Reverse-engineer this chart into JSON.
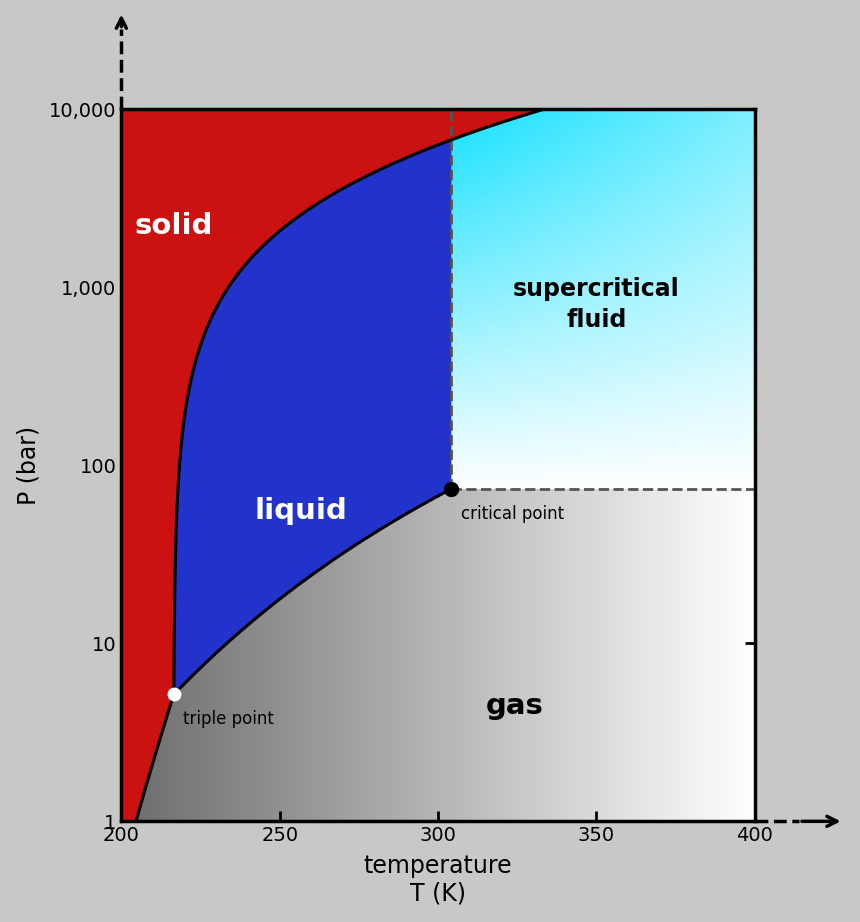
{
  "xlabel": "temperature\nT (K)",
  "ylabel": "P (bar)",
  "xlim": [
    200,
    400
  ],
  "ylim": [
    1,
    10000
  ],
  "xticks": [
    200,
    250,
    300,
    350,
    400
  ],
  "yticks": [
    1,
    10,
    100,
    1000,
    10000
  ],
  "ytick_labels": [
    "1",
    "10",
    "100",
    "1,000",
    "10,000"
  ],
  "triple_T": 216.6,
  "triple_P": 5.18,
  "critical_T": 304.2,
  "critical_P": 73.8,
  "sub_a": 29.82,
  "sub_b": 6102,
  "vap_a": 10.88,
  "vap_b": 2001,
  "solid_color": "#cc1111",
  "liquid_color": "#2233cc",
  "bg_color": "#c8c8c8"
}
